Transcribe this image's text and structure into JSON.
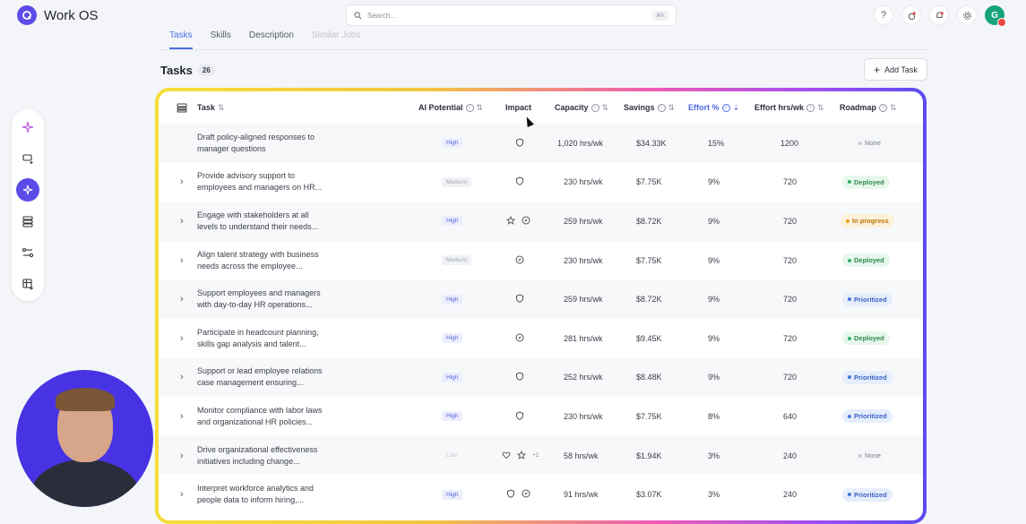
{
  "app": {
    "title": "Work OS"
  },
  "search": {
    "placeholder": "Search...",
    "shortcut": "⌘K"
  },
  "user": {
    "initial": "G"
  },
  "tabs": [
    {
      "label": "Tasks",
      "state": "active"
    },
    {
      "label": "Skills",
      "state": "normal"
    },
    {
      "label": "Description",
      "state": "normal"
    },
    {
      "label": "Similar Jobs",
      "state": "disabled"
    }
  ],
  "section": {
    "title": "Tasks",
    "count": "26"
  },
  "add_task_label": "Add Task",
  "columns": {
    "task": "Task",
    "ai_potential": "AI Potential",
    "impact": "Impact",
    "capacity": "Capacity",
    "savings": "Savings",
    "effort_pct": "Effort %",
    "effort_hrs": "Effort hrs/wk",
    "roadmap": "Roadmap"
  },
  "rows": [
    {
      "line1": "Draft policy-aligned responses to",
      "line2": "manager questions",
      "expandable": false,
      "potential": "High",
      "impact": [
        "shield-icon"
      ],
      "impact_more": "",
      "capacity": "1,020 hrs/wk",
      "savings": "$34.33K",
      "effort_pct": "15%",
      "effort_hrs": "1200",
      "roadmap": "None"
    },
    {
      "line1": "Provide advisory support to",
      "line2": "employees and managers on HR...",
      "expandable": true,
      "potential": "Medium",
      "impact": [
        "shield-icon"
      ],
      "impact_more": "",
      "capacity": "230 hrs/wk",
      "savings": "$7.75K",
      "effort_pct": "9%",
      "effort_hrs": "720",
      "roadmap": "Deployed"
    },
    {
      "line1": "Engage with stakeholders at all",
      "line2": "levels to understand their needs...",
      "expandable": true,
      "potential": "High",
      "impact": [
        "star-icon",
        "compass-icon"
      ],
      "impact_more": "",
      "capacity": "259 hrs/wk",
      "savings": "$8.72K",
      "effort_pct": "9%",
      "effort_hrs": "720",
      "roadmap": "In progress"
    },
    {
      "line1": "Align talent strategy with business",
      "line2": "needs across the employee...",
      "expandable": true,
      "potential": "Medium",
      "impact": [
        "compass-icon"
      ],
      "impact_more": "",
      "capacity": "230 hrs/wk",
      "savings": "$7.75K",
      "effort_pct": "9%",
      "effort_hrs": "720",
      "roadmap": "Deployed"
    },
    {
      "line1": "Support employees and managers",
      "line2": "with day-to-day HR operations...",
      "expandable": true,
      "potential": "High",
      "impact": [
        "shield-icon"
      ],
      "impact_more": "",
      "capacity": "259 hrs/wk",
      "savings": "$8.72K",
      "effort_pct": "9%",
      "effort_hrs": "720",
      "roadmap": "Prioritized"
    },
    {
      "line1": "Participate in headcount planning,",
      "line2": "skills gap analysis and talent...",
      "expandable": true,
      "potential": "High",
      "impact": [
        "compass-icon"
      ],
      "impact_more": "",
      "capacity": "281 hrs/wk",
      "savings": "$9.45K",
      "effort_pct": "9%",
      "effort_hrs": "720",
      "roadmap": "Deployed"
    },
    {
      "line1": "Support or lead employee relations",
      "line2": "case management ensuring...",
      "expandable": true,
      "potential": "High",
      "impact": [
        "shield-icon"
      ],
      "impact_more": "",
      "capacity": "252 hrs/wk",
      "savings": "$8.48K",
      "effort_pct": "9%",
      "effort_hrs": "720",
      "roadmap": "Prioritized"
    },
    {
      "line1": "Monitor compliance with labor laws",
      "line2": "and organizational HR policies...",
      "expandable": true,
      "potential": "High",
      "impact": [
        "shield-icon"
      ],
      "impact_more": "",
      "capacity": "230 hrs/wk",
      "savings": "$7.75K",
      "effort_pct": "8%",
      "effort_hrs": "640",
      "roadmap": "Prioritized"
    },
    {
      "line1": "Drive organizational effectiveness",
      "line2": "initiatives including change...",
      "expandable": true,
      "potential": "Low",
      "impact": [
        "heart-icon",
        "star-icon"
      ],
      "impact_more": "+1",
      "capacity": "58 hrs/wk",
      "savings": "$1.94K",
      "effort_pct": "3%",
      "effort_hrs": "240",
      "roadmap": "None"
    },
    {
      "line1": "Interpret workforce analytics and",
      "line2": "people data to inform hiring,...",
      "expandable": true,
      "potential": "High",
      "impact": [
        "shield-icon",
        "compass-icon"
      ],
      "impact_more": "",
      "capacity": "91 hrs/wk",
      "savings": "$3.07K",
      "effort_pct": "3%",
      "effort_hrs": "240",
      "roadmap": "Prioritized"
    }
  ]
}
